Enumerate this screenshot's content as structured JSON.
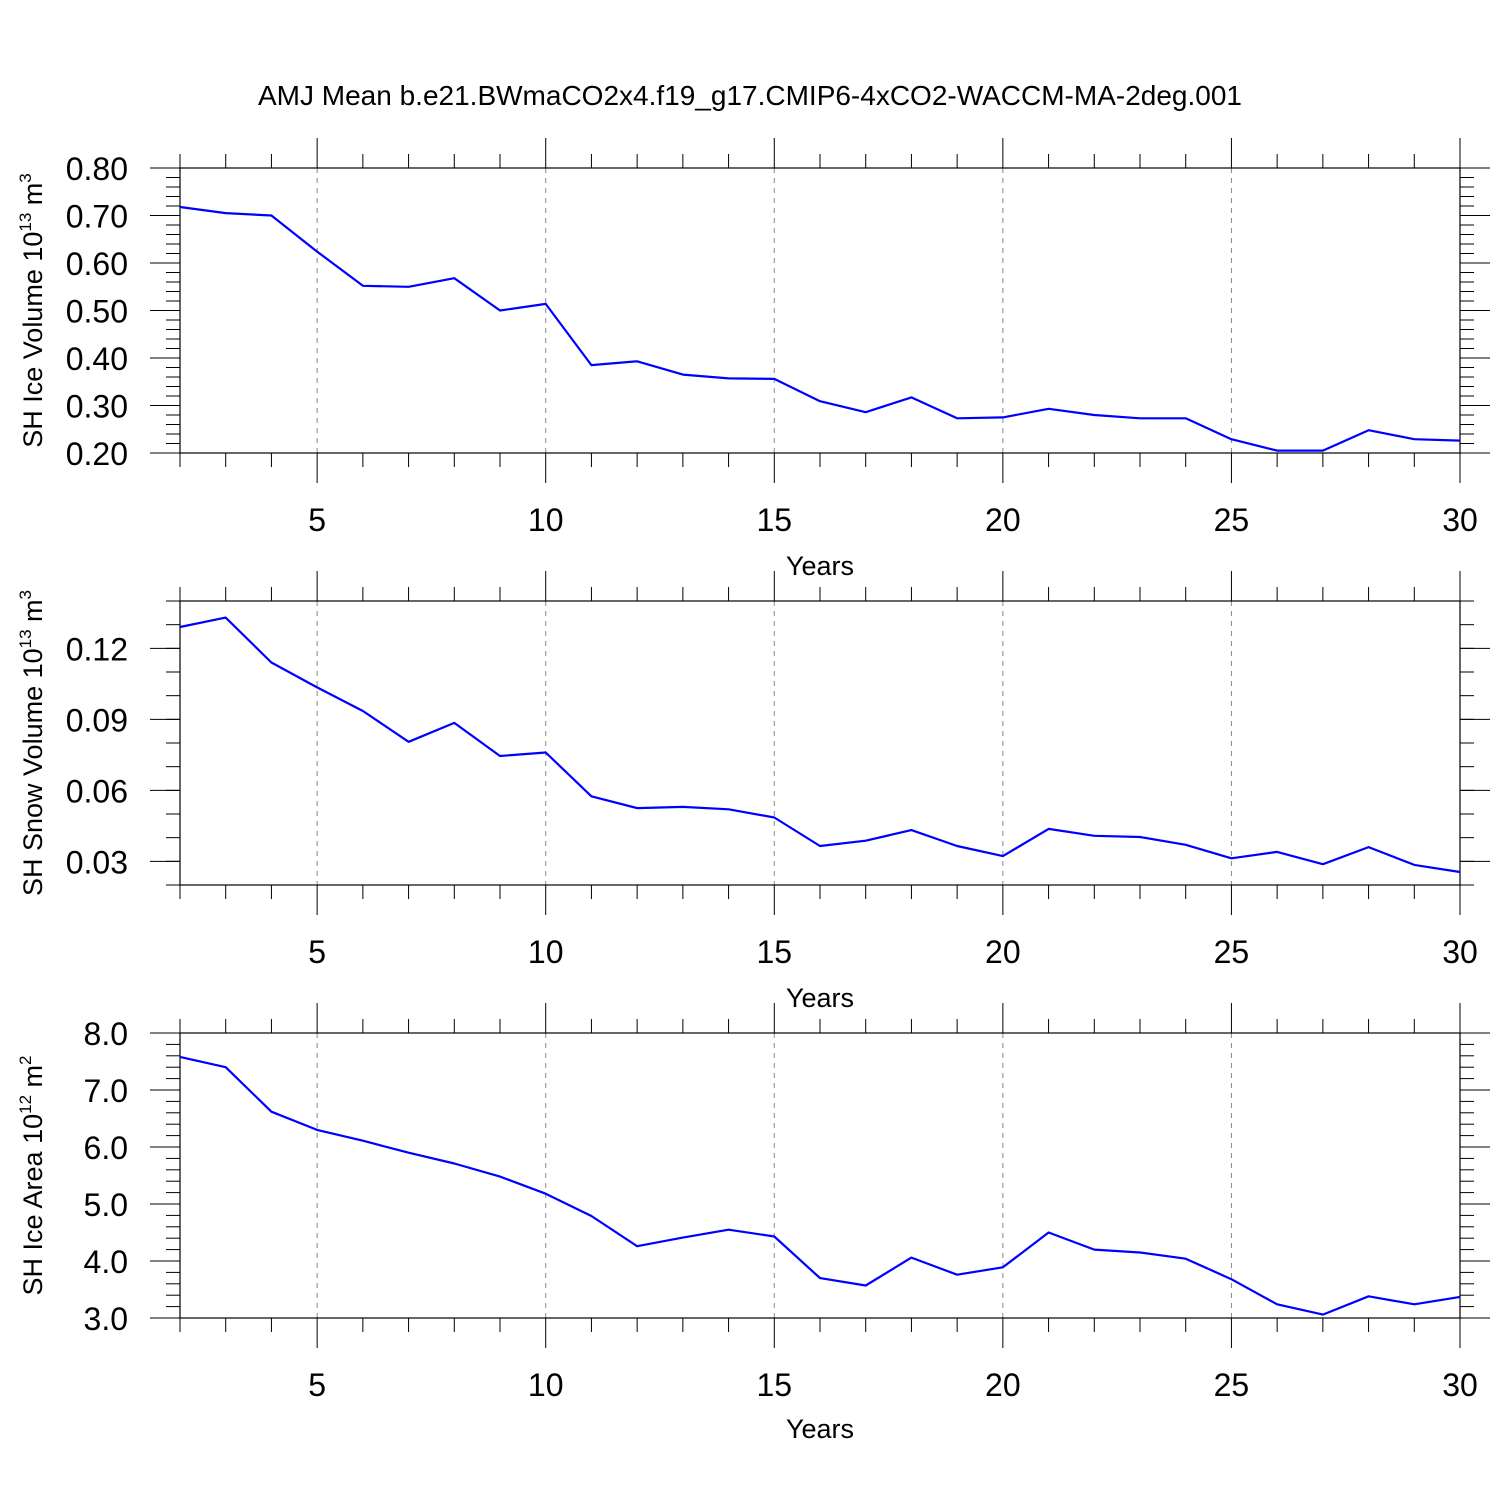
{
  "title": "AMJ Mean b.e21.BWmaCO2x4.f19_g17.CMIP6-4xCO2-WACCM-MA-2deg.001",
  "line_color": "#0000ff",
  "chart_data": [
    {
      "type": "line",
      "ylabel": "SH Ice Volume 10",
      "ylabel_exp": "13",
      "ylabel_unit": " m",
      "ylabel_unit_exp": "3",
      "xlabel": "Years",
      "xlim": [
        2,
        30
      ],
      "ylim": [
        0.2,
        0.8
      ],
      "yticks": [
        "0.20",
        "0.30",
        "0.40",
        "0.50",
        "0.60",
        "0.70",
        "0.80"
      ],
      "xticks": [
        "5",
        "10",
        "15",
        "20",
        "25",
        "30"
      ],
      "x": [
        2,
        3,
        4,
        5,
        6,
        7,
        8,
        9,
        10,
        11,
        12,
        13,
        14,
        15,
        16,
        17,
        18,
        19,
        20,
        21,
        22,
        23,
        24,
        25,
        26,
        27,
        28,
        29,
        30
      ],
      "values": [
        0.718,
        0.705,
        0.7,
        0.624,
        0.552,
        0.55,
        0.568,
        0.5,
        0.514,
        0.385,
        0.393,
        0.365,
        0.357,
        0.356,
        0.309,
        0.286,
        0.317,
        0.273,
        0.275,
        0.293,
        0.28,
        0.273,
        0.273,
        0.229,
        0.205,
        0.205,
        0.248,
        0.229,
        0.226
      ]
    },
    {
      "type": "line",
      "ylabel": "SH Snow Volume 10",
      "ylabel_exp": "13",
      "ylabel_unit": " m",
      "ylabel_unit_exp": "3",
      "xlabel": "Years",
      "xlim": [
        2,
        30
      ],
      "ylim": [
        0.02,
        0.14
      ],
      "yticks": [
        "0.03",
        "0.06",
        "0.09",
        "0.12"
      ],
      "xticks": [
        "5",
        "10",
        "15",
        "20",
        "25",
        "30"
      ],
      "x": [
        2,
        3,
        4,
        5,
        6,
        7,
        8,
        9,
        10,
        11,
        12,
        13,
        14,
        15,
        16,
        17,
        18,
        19,
        20,
        21,
        22,
        23,
        24,
        25,
        26,
        27,
        28,
        29,
        30
      ],
      "values": [
        0.129,
        0.133,
        0.114,
        0.1035,
        0.0935,
        0.0805,
        0.0885,
        0.0745,
        0.076,
        0.0575,
        0.0525,
        0.053,
        0.052,
        0.0485,
        0.0365,
        0.0387,
        0.0432,
        0.0365,
        0.0322,
        0.0437,
        0.0408,
        0.0403,
        0.037,
        0.0313,
        0.034,
        0.0288,
        0.036,
        0.0285,
        0.0255
      ]
    },
    {
      "type": "line",
      "ylabel": "SH Ice Area 10",
      "ylabel_exp": "12",
      "ylabel_unit": " m",
      "ylabel_unit_exp": "2",
      "xlabel": "Years",
      "xlim": [
        2,
        30
      ],
      "ylim": [
        3.0,
        8.0
      ],
      "yticks": [
        "3.0",
        "4.0",
        "5.0",
        "6.0",
        "7.0",
        "8.0"
      ],
      "xticks": [
        "5",
        "10",
        "15",
        "20",
        "25",
        "30"
      ],
      "x": [
        2,
        3,
        4,
        5,
        6,
        7,
        8,
        9,
        10,
        11,
        12,
        13,
        14,
        15,
        16,
        17,
        18,
        19,
        20,
        21,
        22,
        23,
        24,
        25,
        26,
        27,
        28,
        29,
        30
      ],
      "values": [
        7.58,
        7.4,
        6.62,
        6.3,
        6.11,
        5.9,
        5.71,
        5.48,
        5.18,
        4.79,
        4.26,
        4.41,
        4.55,
        4.43,
        3.7,
        3.57,
        4.06,
        3.76,
        3.89,
        4.5,
        4.2,
        4.15,
        4.04,
        3.68,
        3.24,
        3.06,
        3.38,
        3.24,
        3.37
      ]
    }
  ]
}
